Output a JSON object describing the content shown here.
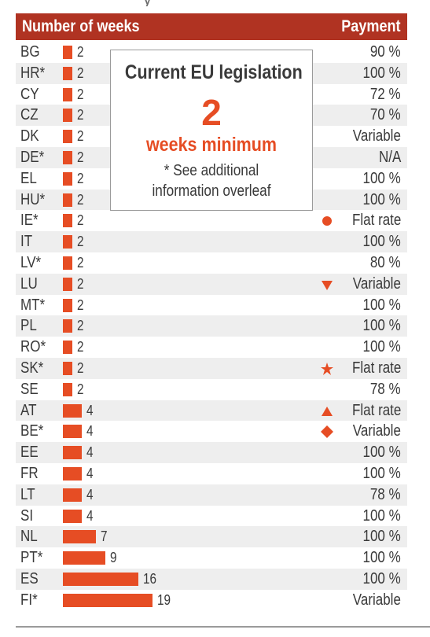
{
  "header": {
    "left": "Number of weeks",
    "right": "Payment"
  },
  "info_box": {
    "title": "Current EU legislation",
    "number": "2",
    "subtitle": "weeks minimum",
    "note_line1": "* See additional",
    "note_line2": "information overleaf"
  },
  "colors": {
    "header_bg": "#b03322",
    "bar": "#e64d24",
    "marker": "#e64d24",
    "stripe": "#eeeeee"
  },
  "chart_data": {
    "type": "bar",
    "orientation": "horizontal",
    "title": "",
    "xlabel": "Number of weeks",
    "ylabel": "",
    "categories": [
      "BG",
      "HR*",
      "CY",
      "CZ",
      "DK",
      "DE*",
      "EL",
      "HU*",
      "IE*",
      "IT",
      "LV*",
      "LU",
      "MT*",
      "PL",
      "RO*",
      "SK*",
      "SE",
      "AT",
      "BE*",
      "EE",
      "FR",
      "LT",
      "SI",
      "NL",
      "PT*",
      "ES",
      "FI*"
    ],
    "values": [
      2,
      2,
      2,
      2,
      2,
      2,
      2,
      2,
      2,
      2,
      2,
      2,
      2,
      2,
      2,
      2,
      2,
      4,
      4,
      4,
      4,
      4,
      4,
      7,
      9,
      16,
      19
    ],
    "payment": [
      "90 %",
      "100 %",
      "72 %",
      "70 %",
      "Variable",
      "N/A",
      "100 %",
      "100 %",
      "Flat rate",
      "100 %",
      "80 %",
      "Variable",
      "100 %",
      "100 %",
      "100 %",
      "Flat rate",
      "78 %",
      "Flat rate",
      "Variable",
      "100 %",
      "100 %",
      "78 %",
      "100 %",
      "100 %",
      "100 %",
      "100 %",
      "Variable"
    ],
    "markers": [
      "",
      "",
      "",
      "",
      "",
      "",
      "",
      "",
      "circle",
      "",
      "",
      "triangle-down",
      "",
      "",
      "",
      "star",
      "",
      "triangle-up",
      "diamond",
      "",
      "",
      "",
      "",
      "",
      "",
      "",
      ""
    ],
    "xlim": [
      0,
      19
    ]
  }
}
